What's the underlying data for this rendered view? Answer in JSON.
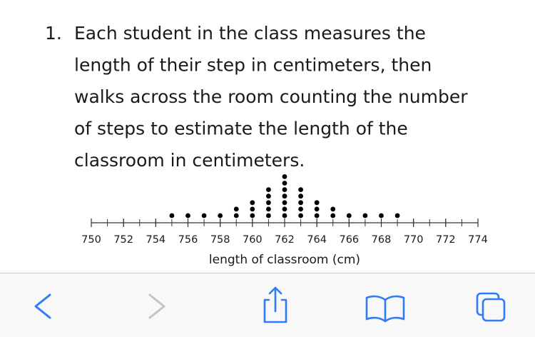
{
  "question": {
    "number": "1.",
    "text_lines": [
      "Each student in the class measures the",
      "length of their step in centimeters, then",
      "walks across the room counting the number",
      "of steps to estimate the length of the",
      "classroom in centimeters."
    ]
  },
  "chart_data": {
    "type": "dot",
    "xlabel": "length of classroom (cm)",
    "x": [
      755,
      756,
      757,
      758,
      759,
      760,
      761,
      762,
      763,
      764,
      765,
      766,
      767,
      768,
      769
    ],
    "values": [
      1,
      1,
      1,
      1,
      2,
      3,
      5,
      7,
      5,
      3,
      2,
      1,
      1,
      1,
      1
    ],
    "color": "#000000",
    "xlim": [
      750,
      774
    ],
    "xticks": [
      750,
      752,
      754,
      756,
      758,
      760,
      762,
      764,
      766,
      768,
      770,
      772,
      774
    ],
    "minor_xticks": [
      750,
      751,
      752,
      753,
      754,
      755,
      756,
      757,
      758,
      759,
      760,
      761,
      762,
      763,
      764,
      765,
      766,
      767,
      768,
      769,
      770,
      771,
      772,
      773,
      774
    ]
  }
}
